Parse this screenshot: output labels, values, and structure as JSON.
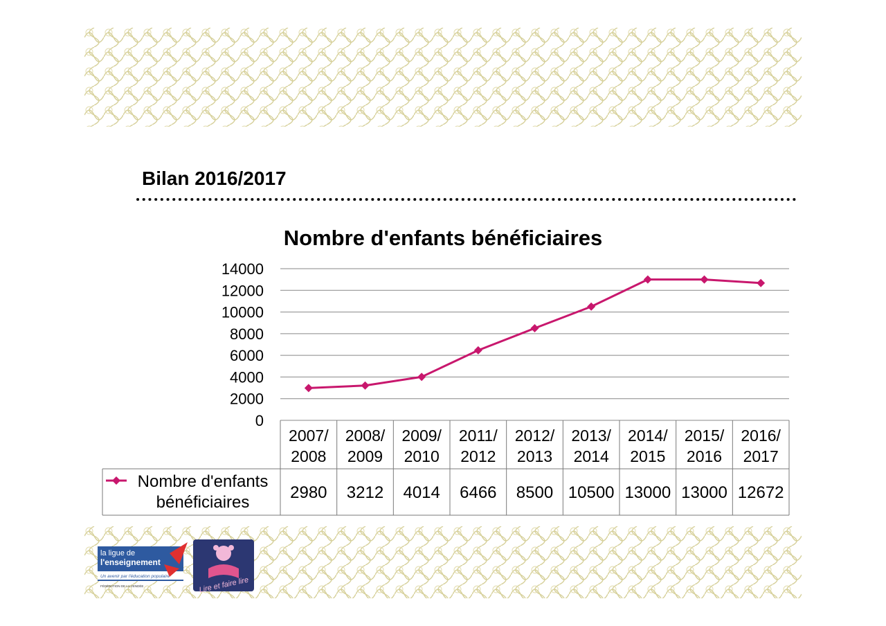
{
  "heading": "Bilan 2016/2017",
  "colors": {
    "series": "#c8176d",
    "grid": "#878787",
    "pattern": "#d6d09a"
  },
  "logos": {
    "ligue": {
      "line1": "la ligue de",
      "line2": "l'enseignement",
      "tagline": "Un avenir par l'éducation populaire",
      "footer": "FÉDÉRATION DE LA VENDÉE"
    },
    "lire": {
      "text": "Lire et faire lire"
    }
  },
  "chart_data": {
    "type": "line",
    "title": "Nombre d'enfants bénéficiaires",
    "categories": [
      "2007/ 2008",
      "2008/ 2009",
      "2009/ 2010",
      "2011/ 2012",
      "2012/ 2013",
      "2013/ 2014",
      "2014/ 2015",
      "2015/ 2016",
      "2016/ 2017"
    ],
    "series": [
      {
        "name": "Nombre d'enfants bénéficiaires",
        "values": [
          2980,
          3212,
          4014,
          6466,
          8500,
          10500,
          13000,
          13000,
          12672
        ]
      }
    ],
    "ylim": [
      0,
      14000
    ],
    "yticks": [
      0,
      2000,
      4000,
      6000,
      8000,
      10000,
      12000,
      14000
    ],
    "grid": true,
    "legend": "data-table"
  }
}
